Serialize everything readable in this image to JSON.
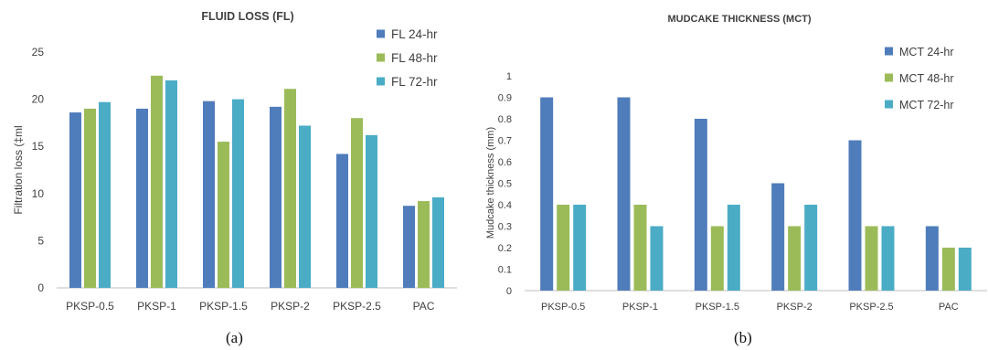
{
  "colors": {
    "series1": "#4f7cbb",
    "series2": "#9bbb59",
    "series3": "#4bacc6",
    "axis": "#bfbfbf",
    "text": "#404040"
  },
  "chart_data": [
    {
      "type": "bar",
      "title": "FLUID LOSS (FL)",
      "xlabel": "",
      "ylabel": "Filtration loss (‡ml",
      "ylim": [
        0,
        25
      ],
      "yticks": [
        0,
        5,
        10,
        15,
        20,
        25
      ],
      "ytick_labels": [
        "0",
        "5",
        "10",
        "15",
        "20",
        "25"
      ],
      "grid": false,
      "legend_position": "top-right",
      "categories": [
        "PKSP-0.5",
        "PKSP-1",
        "PKSP-1.5",
        "PKSP-2",
        "PKSP-2.5",
        "PAC"
      ],
      "series": [
        {
          "name": "FL 24-hr",
          "values": [
            18.6,
            19.0,
            19.8,
            19.2,
            14.2,
            8.7
          ]
        },
        {
          "name": "FL 48-hr",
          "values": [
            19.0,
            22.5,
            15.5,
            21.1,
            18.0,
            9.2
          ]
        },
        {
          "name": "FL 72-hr",
          "values": [
            19.7,
            22.0,
            20.0,
            17.2,
            16.2,
            9.6
          ]
        }
      ]
    },
    {
      "type": "bar",
      "title": "MUDCAKE THICKNESS (MCT)",
      "xlabel": "",
      "ylabel": "Mudcake thickness (mm)",
      "ylim": [
        0,
        1
      ],
      "yticks": [
        0,
        0.1,
        0.2,
        0.3,
        0.4,
        0.5,
        0.6,
        0.7,
        0.8,
        0.9,
        1
      ],
      "ytick_labels": [
        "0",
        "0.1",
        "0.2",
        "0.3",
        "0.4",
        "0.5",
        "0.6",
        "0.7",
        "0.8",
        "0.9",
        "1"
      ],
      "grid": false,
      "legend_position": "top-right",
      "categories": [
        "PKSP-0.5",
        "PKSP-1",
        "PKSP-1.5",
        "PKSP-2",
        "PKSP-2.5",
        "PAC"
      ],
      "series": [
        {
          "name": "MCT 24-hr",
          "values": [
            0.9,
            0.9,
            0.8,
            0.5,
            0.7,
            0.3
          ]
        },
        {
          "name": "MCT 48-hr",
          "values": [
            0.4,
            0.4,
            0.3,
            0.3,
            0.3,
            0.2
          ]
        },
        {
          "name": "MCT 72-hr",
          "values": [
            0.4,
            0.3,
            0.4,
            0.4,
            0.3,
            0.2
          ]
        }
      ]
    }
  ],
  "panel_labels": [
    "(a)",
    "(b)"
  ]
}
